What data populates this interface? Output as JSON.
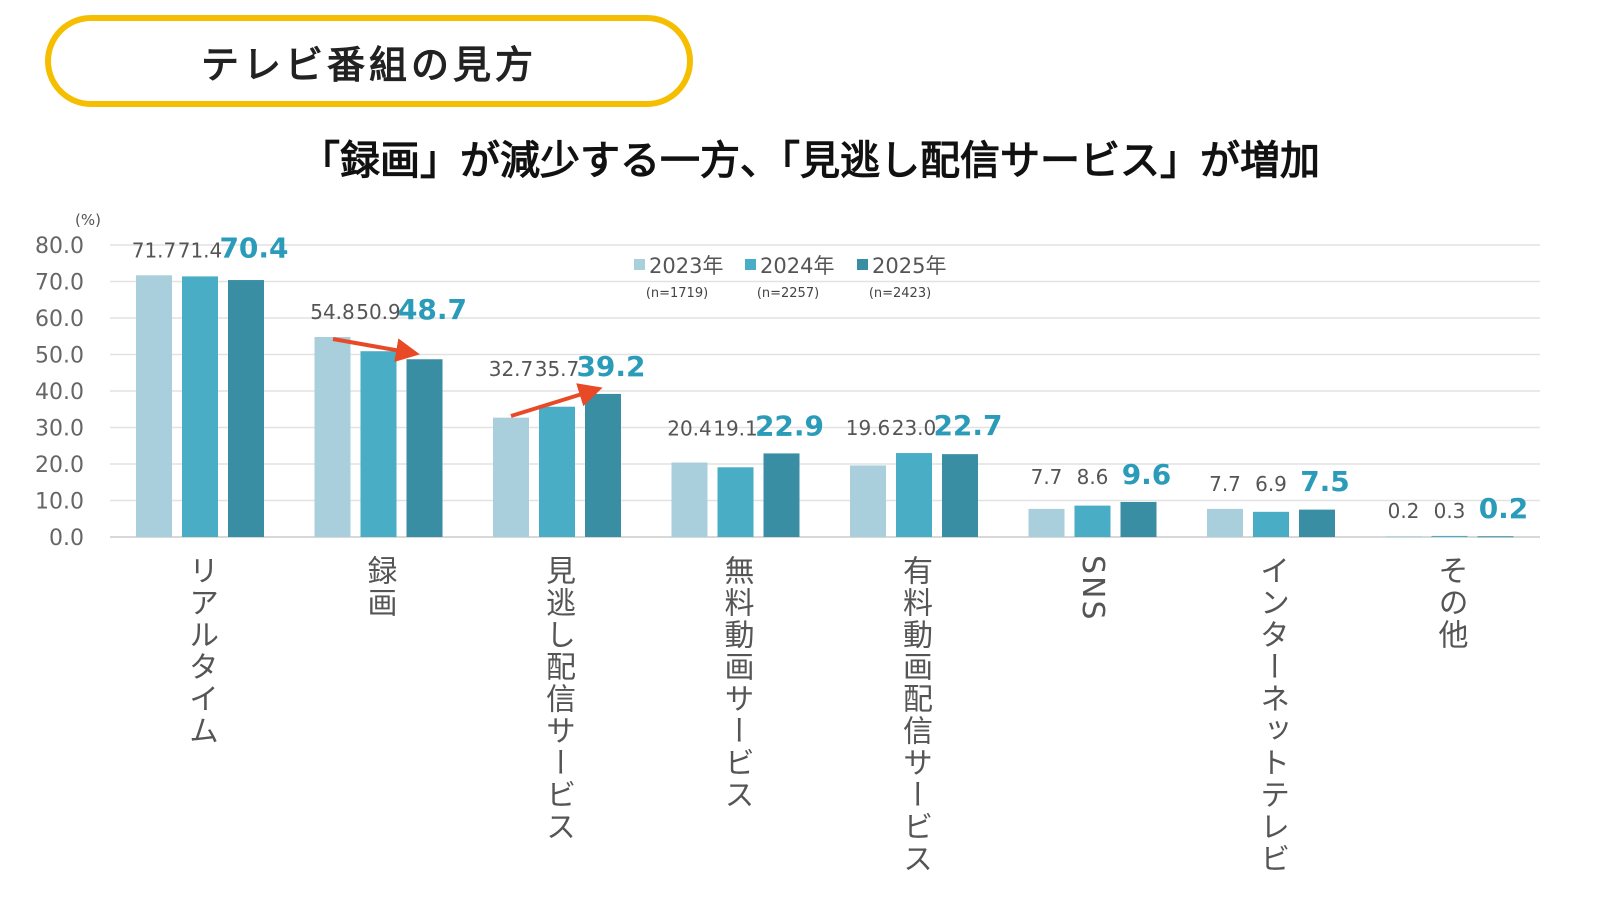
{
  "header": {
    "title": "テレビ番組の見方"
  },
  "subtitle": "「録画」が減少する一方、「見逃し配信サービス」が増加",
  "chart_data": {
    "type": "bar",
    "title": "「録画」が減少する一方、「見逃し配信サービス」が増加",
    "ylabel": "(%)",
    "ylim": [
      0,
      80
    ],
    "yticks": [
      "0.0",
      "10.0",
      "20.0",
      "30.0",
      "40.0",
      "50.0",
      "60.0",
      "70.0",
      "80.0"
    ],
    "grid": true,
    "legend_placement": "top-center",
    "categories": [
      "リアルタイム",
      "録画",
      "見逃し配信サービス",
      "無料動画サービス",
      "有料動画配信サービス",
      "SNS",
      "インターネットテレビ",
      "その他"
    ],
    "series": [
      {
        "name": "2023年",
        "n": "(n=1719)",
        "color": "#a9cfdc",
        "values": [
          71.7,
          54.8,
          32.7,
          20.4,
          19.6,
          7.7,
          7.7,
          0.2
        ]
      },
      {
        "name": "2024年",
        "n": "(n=2257)",
        "color": "#4aadc6",
        "values": [
          71.4,
          50.9,
          35.7,
          19.1,
          23.0,
          8.6,
          6.9,
          0.3
        ]
      },
      {
        "name": "2025年",
        "n": "(n=2423)",
        "color": "#3a8ea3",
        "values": [
          70.4,
          48.7,
          39.2,
          22.9,
          22.7,
          9.6,
          7.5,
          0.2
        ]
      }
    ],
    "highlight_color": "#2a9bb8",
    "arrow_color": "#e84a27",
    "annotations": [
      "trend arrow over 録画 (decrease)",
      "trend arrow over 見逃し配信サービス (increase)"
    ]
  }
}
